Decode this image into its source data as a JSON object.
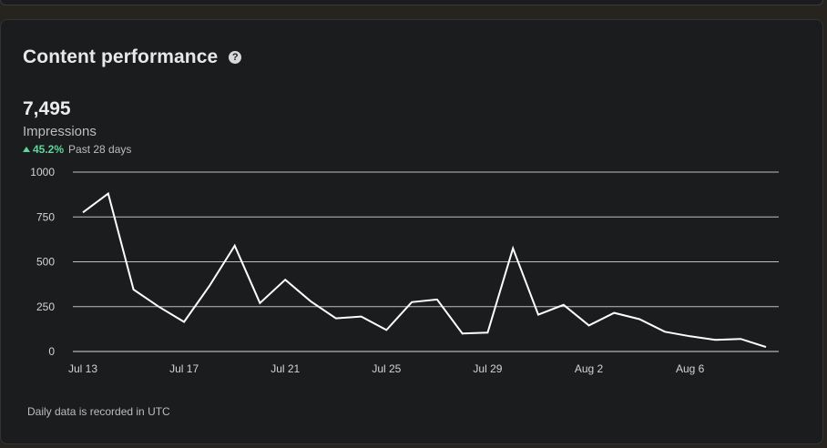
{
  "card": {
    "title": "Content performance",
    "help_icon": "help-circle-icon",
    "metric_value": "7,495",
    "metric_label": "Impressions",
    "change_percent": "45.2%",
    "change_period": "Past 28 days",
    "footnote": "Daily data is recorded in UTC"
  },
  "chart_data": {
    "type": "line",
    "title": "",
    "xlabel": "",
    "ylabel": "",
    "x_ticks": [
      "Jul 13",
      "Jul 17",
      "Jul 21",
      "Jul 25",
      "Jul 29",
      "Aug 2",
      "Aug 6"
    ],
    "y_ticks": [
      "1000",
      "750",
      "500",
      "250",
      "0"
    ],
    "ylim": [
      0,
      1000
    ],
    "grid": true,
    "series": [
      {
        "color": "#ffffff",
        "x": [
          "Jul 13",
          "Jul 14",
          "Jul 15",
          "Jul 16",
          "Jul 17",
          "Jul 18",
          "Jul 19",
          "Jul 20",
          "Jul 21",
          "Jul 22",
          "Jul 23",
          "Jul 24",
          "Jul 25",
          "Jul 26",
          "Jul 27",
          "Jul 28",
          "Jul 29",
          "Jul 30",
          "Jul 31",
          "Aug 1",
          "Aug 2",
          "Aug 3",
          "Aug 4",
          "Aug 5",
          "Aug 6",
          "Aug 7",
          "Aug 8",
          "Aug 9"
        ],
        "values": [
          775,
          880,
          345,
          250,
          165,
          365,
          590,
          270,
          400,
          280,
          185,
          195,
          120,
          275,
          290,
          100,
          105,
          575,
          205,
          260,
          145,
          215,
          180,
          110,
          85,
          65,
          70,
          25
        ]
      }
    ]
  }
}
